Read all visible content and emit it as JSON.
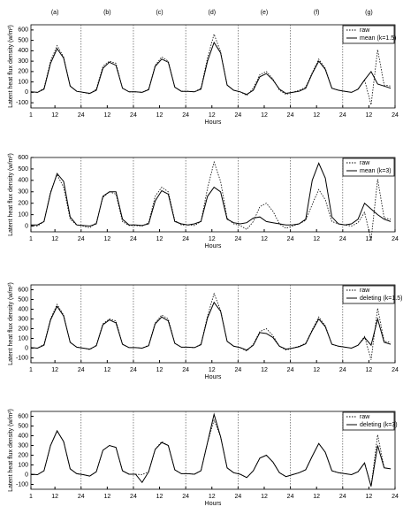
{
  "chart_data": [
    {
      "type": "line",
      "xlabel": "Hours",
      "ylabel": "Latent heat flux density (w/m²)",
      "day_labels": [
        "(a)",
        "(b)",
        "(c)",
        "(d)",
        "(e)",
        "(f)",
        "(g)"
      ],
      "x": [
        1,
        4,
        7,
        10,
        13,
        16,
        19,
        22,
        25,
        28,
        31,
        34,
        37,
        40,
        43,
        46,
        49,
        52,
        55,
        58,
        61,
        64,
        67,
        70,
        73,
        76,
        79,
        82,
        85,
        88,
        91,
        94,
        97,
        100,
        103,
        106,
        109,
        112,
        115,
        118,
        121,
        124,
        127,
        130,
        133,
        136,
        139,
        142,
        145,
        148,
        151,
        154,
        157,
        160,
        163,
        166
      ],
      "xlim": [
        1,
        168
      ],
      "xticks": [
        1,
        12,
        24,
        {
          "value": 36,
          "label": "12"
        },
        {
          "value": 48,
          "label": "24"
        },
        {
          "value": 60,
          "label": "12"
        },
        {
          "value": 72,
          "label": "24"
        },
        {
          "value": 84,
          "label": "12"
        },
        {
          "value": 96,
          "label": "24"
        },
        {
          "value": 108,
          "label": "12"
        },
        {
          "value": 120,
          "label": "24"
        },
        {
          "value": 132,
          "label": "12"
        },
        {
          "value": 144,
          "label": "24"
        },
        {
          "value": 156,
          "label": "12"
        },
        {
          "value": 168,
          "label": "24"
        }
      ],
      "ylim": [
        -150,
        650
      ],
      "yticks": [
        -100,
        0,
        100,
        200,
        300,
        400,
        500,
        600
      ],
      "series": [
        {
          "name": "raw",
          "color": "#000000",
          "style": "dotted",
          "values": [
            5,
            0,
            40,
            300,
            450,
            340,
            60,
            10,
            0,
            -15,
            30,
            250,
            300,
            280,
            40,
            5,
            5,
            0,
            30,
            260,
            340,
            300,
            50,
            10,
            10,
            5,
            40,
            330,
            560,
            390,
            70,
            20,
            5,
            -30,
            40,
            170,
            200,
            130,
            20,
            -20,
            0,
            20,
            50,
            190,
            320,
            230,
            40,
            20,
            10,
            0,
            30,
            120,
            -120,
            410,
            70,
            60
          ]
        },
        {
          "name": "mean (k=1.5)",
          "color": "#000000",
          "style": "solid",
          "values": [
            5,
            0,
            30,
            280,
            420,
            330,
            60,
            10,
            0,
            -10,
            20,
            230,
            290,
            260,
            40,
            5,
            5,
            0,
            25,
            250,
            320,
            290,
            50,
            10,
            10,
            5,
            30,
            300,
            480,
            380,
            70,
            20,
            5,
            -20,
            20,
            150,
            180,
            120,
            30,
            -10,
            0,
            10,
            40,
            180,
            300,
            220,
            40,
            20,
            10,
            0,
            30,
            120,
            200,
            80,
            60,
            40
          ]
        }
      ]
    },
    {
      "type": "line",
      "xlabel": "Hours",
      "ylabel": "Latent heat flux density (w/m²)",
      "x": [
        1,
        4,
        7,
        10,
        13,
        16,
        19,
        22,
        25,
        28,
        31,
        34,
        37,
        40,
        43,
        46,
        49,
        52,
        55,
        58,
        61,
        64,
        67,
        70,
        73,
        76,
        79,
        82,
        85,
        88,
        91,
        94,
        97,
        100,
        103,
        106,
        109,
        112,
        115,
        118,
        121,
        124,
        127,
        130,
        133,
        136,
        139,
        142,
        145,
        148,
        151,
        154,
        157,
        160,
        163,
        166
      ],
      "xlim": [
        1,
        168
      ],
      "xticks": [
        1,
        12,
        24,
        {
          "value": 36,
          "label": "12"
        },
        {
          "value": 48,
          "label": "24"
        },
        {
          "value": 60,
          "label": "12"
        },
        {
          "value": 72,
          "label": "24"
        },
        {
          "value": 84,
          "label": "12"
        },
        {
          "value": 96,
          "label": "24"
        },
        {
          "value": 108,
          "label": "12"
        },
        {
          "value": 120,
          "label": "24"
        },
        {
          "value": 132,
          "label": "12"
        },
        {
          "value": 144,
          "label": "24"
        },
        {
          "value": 156,
          "label": "12"
        },
        {
          "value": 168,
          "label": "24"
        }
      ],
      "ylim": [
        -50,
        600
      ],
      "yticks": [
        0,
        100,
        200,
        300,
        400,
        500,
        600
      ],
      "series": [
        {
          "name": "raw",
          "color": "#000000",
          "style": "dotted",
          "values": [
            5,
            0,
            40,
            300,
            450,
            340,
            60,
            10,
            0,
            -15,
            30,
            250,
            300,
            280,
            40,
            5,
            5,
            0,
            30,
            260,
            340,
            300,
            50,
            10,
            10,
            5,
            40,
            330,
            560,
            390,
            70,
            20,
            5,
            -30,
            40,
            170,
            200,
            130,
            20,
            -20,
            0,
            20,
            50,
            190,
            320,
            230,
            40,
            20,
            10,
            0,
            30,
            120,
            -120,
            410,
            70,
            60
          ]
        },
        {
          "name": "mean (k=3)",
          "color": "#000000",
          "style": "solid",
          "values": [
            10,
            10,
            40,
            290,
            460,
            390,
            80,
            10,
            5,
            0,
            20,
            260,
            300,
            300,
            60,
            10,
            10,
            5,
            20,
            220,
            310,
            280,
            40,
            20,
            10,
            20,
            40,
            260,
            340,
            300,
            60,
            30,
            20,
            30,
            70,
            80,
            40,
            30,
            20,
            10,
            10,
            20,
            60,
            400,
            550,
            420,
            80,
            20,
            10,
            20,
            60,
            200,
            150,
            100,
            60,
            40
          ]
        }
      ]
    },
    {
      "type": "line",
      "xlabel": "Hours",
      "ylabel": "Latent heat flux density (w/m²)",
      "x": [
        1,
        4,
        7,
        10,
        13,
        16,
        19,
        22,
        25,
        28,
        31,
        34,
        37,
        40,
        43,
        46,
        49,
        52,
        55,
        58,
        61,
        64,
        67,
        70,
        73,
        76,
        79,
        82,
        85,
        88,
        91,
        94,
        97,
        100,
        103,
        106,
        109,
        112,
        115,
        118,
        121,
        124,
        127,
        130,
        133,
        136,
        139,
        142,
        145,
        148,
        151,
        154,
        157,
        160,
        163,
        166
      ],
      "xlim": [
        1,
        168
      ],
      "xticks": [
        1,
        12,
        24,
        {
          "value": 36,
          "label": "12"
        },
        {
          "value": 48,
          "label": "24"
        },
        {
          "value": 60,
          "label": "12"
        },
        {
          "value": 72,
          "label": "24"
        },
        {
          "value": 84,
          "label": "12"
        },
        {
          "value": 96,
          "label": "24"
        },
        {
          "value": 108,
          "label": "12"
        },
        {
          "value": 120,
          "label": "24"
        },
        {
          "value": 132,
          "label": "12"
        },
        {
          "value": 144,
          "label": "24"
        },
        {
          "value": 156,
          "label": "12"
        },
        {
          "value": 168,
          "label": "24"
        }
      ],
      "ylim": [
        -150,
        650
      ],
      "yticks": [
        -100,
        0,
        100,
        200,
        300,
        400,
        500,
        600
      ],
      "series": [
        {
          "name": "raw",
          "color": "#000000",
          "style": "dotted",
          "values": [
            5,
            0,
            40,
            300,
            450,
            340,
            60,
            10,
            0,
            -15,
            30,
            250,
            300,
            280,
            40,
            5,
            5,
            0,
            30,
            260,
            340,
            300,
            50,
            10,
            10,
            5,
            40,
            330,
            560,
            390,
            70,
            20,
            5,
            -30,
            40,
            170,
            200,
            130,
            20,
            -20,
            0,
            20,
            50,
            190,
            320,
            230,
            40,
            20,
            10,
            0,
            30,
            120,
            -120,
            410,
            70,
            60
          ]
        },
        {
          "name": "deleting (k=1.5)",
          "color": "#000000",
          "style": "solid",
          "values": [
            5,
            0,
            30,
            290,
            430,
            330,
            60,
            10,
            0,
            -10,
            25,
            240,
            290,
            260,
            40,
            5,
            5,
            0,
            25,
            250,
            320,
            280,
            50,
            10,
            10,
            5,
            35,
            310,
            470,
            380,
            70,
            20,
            5,
            -20,
            30,
            160,
            150,
            110,
            20,
            -10,
            0,
            15,
            45,
            180,
            300,
            220,
            40,
            20,
            10,
            0,
            30,
            110,
            30,
            300,
            60,
            40
          ]
        }
      ]
    },
    {
      "type": "line",
      "xlabel": "Hours",
      "ylabel": "Latent heat flux density (w/m²)",
      "x": [
        1,
        4,
        7,
        10,
        13,
        16,
        19,
        22,
        25,
        28,
        31,
        34,
        37,
        40,
        43,
        46,
        49,
        52,
        55,
        58,
        61,
        64,
        67,
        70,
        73,
        76,
        79,
        82,
        85,
        88,
        91,
        94,
        97,
        100,
        103,
        106,
        109,
        112,
        115,
        118,
        121,
        124,
        127,
        130,
        133,
        136,
        139,
        142,
        145,
        148,
        151,
        154,
        157,
        160,
        163,
        166
      ],
      "xlim": [
        1,
        168
      ],
      "xticks": [
        1,
        12,
        24,
        {
          "value": 36,
          "label": "12"
        },
        {
          "value": 48,
          "label": "24"
        },
        {
          "value": 60,
          "label": "12"
        },
        {
          "value": 72,
          "label": "24"
        },
        {
          "value": 84,
          "label": "12"
        },
        {
          "value": 96,
          "label": "24"
        },
        {
          "value": 108,
          "label": "12"
        },
        {
          "value": 120,
          "label": "24"
        },
        {
          "value": 132,
          "label": "12"
        },
        {
          "value": 144,
          "label": "24"
        },
        {
          "value": 156,
          "label": "12"
        },
        {
          "value": 168,
          "label": "24"
        }
      ],
      "ylim": [
        -150,
        650
      ],
      "yticks": [
        -100,
        0,
        100,
        200,
        300,
        400,
        500,
        600
      ],
      "series": [
        {
          "name": "raw",
          "color": "#000000",
          "style": "dotted",
          "values": [
            5,
            0,
            40,
            300,
            450,
            340,
            60,
            10,
            0,
            -15,
            30,
            250,
            300,
            280,
            40,
            5,
            5,
            0,
            30,
            260,
            340,
            300,
            50,
            10,
            10,
            5,
            40,
            330,
            560,
            390,
            70,
            20,
            5,
            -30,
            40,
            170,
            200,
            130,
            20,
            -20,
            0,
            20,
            50,
            190,
            320,
            230,
            40,
            20,
            10,
            0,
            30,
            120,
            -120,
            410,
            70,
            60
          ]
        },
        {
          "name": "deleting (k=3)",
          "color": "#000000",
          "style": "solid",
          "values": [
            5,
            0,
            40,
            300,
            450,
            340,
            60,
            10,
            0,
            -15,
            30,
            250,
            300,
            280,
            40,
            5,
            5,
            -80,
            30,
            260,
            330,
            300,
            50,
            10,
            10,
            5,
            40,
            330,
            620,
            390,
            70,
            20,
            5,
            -30,
            40,
            170,
            200,
            130,
            20,
            -20,
            0,
            20,
            50,
            190,
            320,
            230,
            40,
            20,
            10,
            0,
            30,
            120,
            -120,
            300,
            70,
            60
          ]
        }
      ]
    }
  ]
}
